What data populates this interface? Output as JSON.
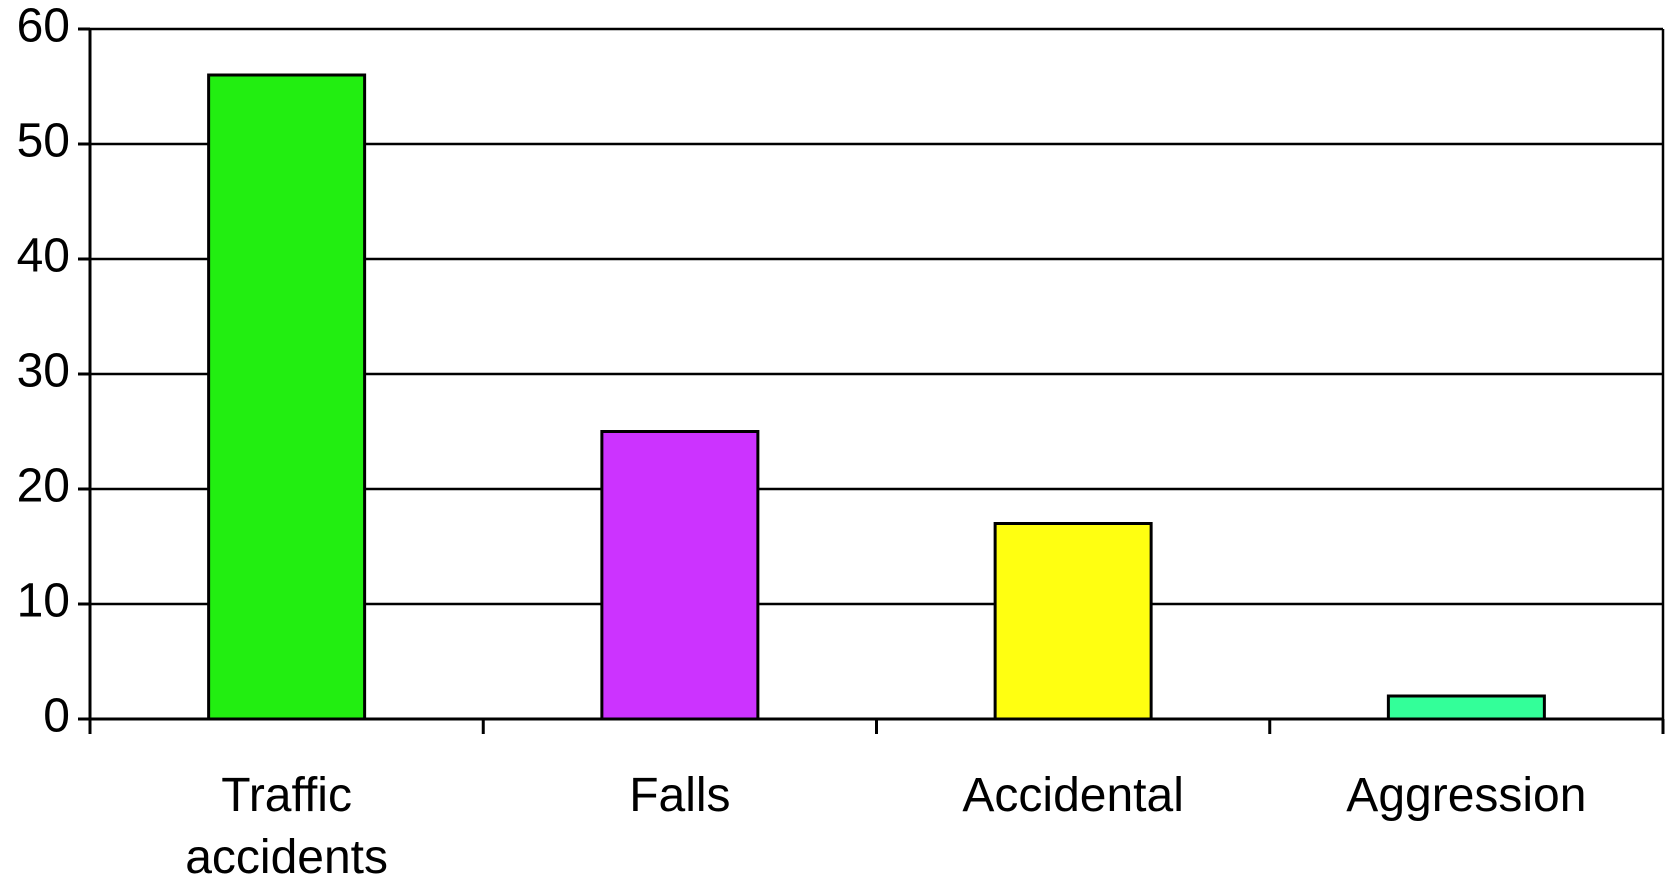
{
  "chart_data": {
    "type": "bar",
    "categories": [
      "Traffic accidents",
      "Falls",
      "Accidental",
      "Aggression"
    ],
    "values": [
      56,
      25,
      17,
      2
    ],
    "colors": [
      "#22ee11",
      "#cc33ff",
      "#ffff11",
      "#33ff99"
    ],
    "ylim": [
      0,
      60
    ],
    "yticks": [
      0,
      10,
      20,
      30,
      40,
      50,
      60
    ],
    "grid": true
  }
}
